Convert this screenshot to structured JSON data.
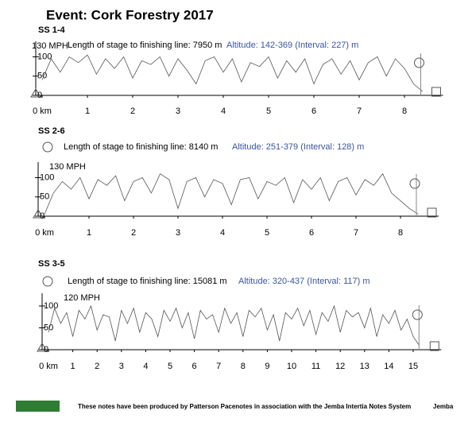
{
  "header": {
    "title": "Event: Cork Forestry 2017"
  },
  "chart_data": [
    {
      "type": "line",
      "title": "SS 1-4",
      "length_text": "Length of stage to finishing line: 7950 m",
      "altitude_text": "Altitude: 142-369 (Interval: 227) m",
      "max_label": "130 MPH",
      "x": [
        0,
        0.2,
        0.4,
        0.6,
        0.8,
        1,
        1.2,
        1.4,
        1.6,
        1.8,
        2,
        2.2,
        2.4,
        2.6,
        2.8,
        3,
        3.2,
        3.4,
        3.6,
        3.8,
        4,
        4.2,
        4.4,
        4.6,
        4.8,
        5,
        5.2,
        5.4,
        5.6,
        5.8,
        6,
        6.2,
        6.4,
        6.6,
        6.8,
        7,
        7.2,
        7.4,
        7.6,
        7.8,
        8,
        8.2,
        8.4
      ],
      "series": [
        {
          "color": "#555555",
          "values": [
            40,
            95,
            60,
            100,
            85,
            105,
            55,
            95,
            70,
            100,
            45,
            90,
            80,
            100,
            50,
            95,
            65,
            30,
            90,
            100,
            60,
            95,
            35,
            85,
            75,
            100,
            45,
            90,
            60,
            95,
            30,
            80,
            95,
            55,
            90,
            40,
            85,
            100,
            50,
            95,
            70,
            30,
            10
          ]
        }
      ],
      "xlim": [
        0,
        8.5
      ],
      "ylim": [
        0,
        130
      ],
      "xticks": [
        {
          "value": 0,
          "label": "0 km"
        },
        1,
        2,
        3,
        4,
        5,
        6,
        7,
        8
      ],
      "yticks": [
        0,
        50,
        100
      ]
    },
    {
      "type": "line",
      "title": "SS 2-6",
      "length_text": "Length of stage to finishing line: 8140 m",
      "altitude_text": "Altitude: 251-379 (Interval: 128) m",
      "max_label": "130 MPH",
      "x": [
        0,
        0.2,
        0.4,
        0.6,
        0.8,
        1,
        1.2,
        1.4,
        1.6,
        1.8,
        2,
        2.2,
        2.4,
        2.6,
        2.8,
        3,
        3.2,
        3.4,
        3.6,
        3.8,
        4,
        4.2,
        4.4,
        4.6,
        4.8,
        5,
        5.2,
        5.4,
        5.6,
        5.8,
        6,
        6.2,
        6.4,
        6.6,
        6.8,
        7,
        7.2,
        7.4,
        7.6,
        7.8,
        8,
        8.2,
        8.4
      ],
      "series": [
        {
          "color": "#555555",
          "values": [
            5,
            60,
            90,
            70,
            100,
            45,
            95,
            80,
            105,
            40,
            90,
            100,
            60,
            110,
            95,
            20,
            90,
            100,
            50,
            95,
            85,
            30,
            95,
            100,
            45,
            90,
            80,
            100,
            35,
            95,
            70,
            100,
            40,
            90,
            100,
            55,
            95,
            80,
            110,
            60,
            40,
            20,
            5
          ]
        }
      ],
      "xlim": [
        0,
        8.5
      ],
      "ylim": [
        0,
        130
      ],
      "xticks": [
        {
          "value": 0,
          "label": "0 km"
        },
        1,
        2,
        3,
        4,
        5,
        6,
        7,
        8
      ],
      "yticks": [
        0,
        50,
        100
      ]
    },
    {
      "type": "line",
      "title": "SS 3-5",
      "length_text": "Length of stage to finishing line: 15081 m",
      "altitude_text": "Altitude: 320-437 (Interval: 117) m",
      "max_label": "120 MPH",
      "x": [
        0,
        0.25,
        0.5,
        0.75,
        1,
        1.25,
        1.5,
        1.75,
        2,
        2.25,
        2.5,
        2.75,
        3,
        3.25,
        3.5,
        3.75,
        4,
        4.25,
        4.5,
        4.75,
        5,
        5.25,
        5.5,
        5.75,
        6,
        6.25,
        6.5,
        6.75,
        7,
        7.25,
        7.5,
        7.75,
        8,
        8.25,
        8.5,
        8.75,
        9,
        9.25,
        9.5,
        9.75,
        10,
        10.25,
        10.5,
        10.75,
        11,
        11.25,
        11.5,
        11.75,
        12,
        12.25,
        12.5,
        12.75,
        13,
        13.25,
        13.5,
        13.75,
        14,
        14.25,
        14.5,
        14.75,
        15,
        15.25
      ],
      "series": [
        {
          "color": "#555555",
          "values": [
            40,
            95,
            60,
            85,
            30,
            90,
            70,
            100,
            45,
            80,
            75,
            20,
            90,
            60,
            95,
            40,
            85,
            70,
            30,
            90,
            65,
            95,
            50,
            85,
            25,
            90,
            70,
            80,
            40,
            95,
            60,
            85,
            30,
            90,
            75,
            95,
            45,
            80,
            20,
            85,
            70,
            95,
            55,
            90,
            35,
            85,
            65,
            100,
            40,
            90,
            75,
            85,
            50,
            95,
            30,
            80,
            60,
            90,
            45,
            70,
            30,
            10
          ]
        }
      ],
      "xlim": [
        0,
        15.5
      ],
      "ylim": [
        0,
        120
      ],
      "xticks": [
        {
          "value": 0,
          "label": "0 km"
        },
        1,
        2,
        3,
        4,
        5,
        6,
        7,
        8,
        9,
        10,
        11,
        12,
        13,
        14,
        15
      ],
      "yticks": [
        0,
        50,
        100
      ]
    }
  ],
  "footer": {
    "text": "These notes have been produced by Patterson Pacenotes in association with the Jemba Intertia Notes System",
    "brand": "Jemba"
  }
}
